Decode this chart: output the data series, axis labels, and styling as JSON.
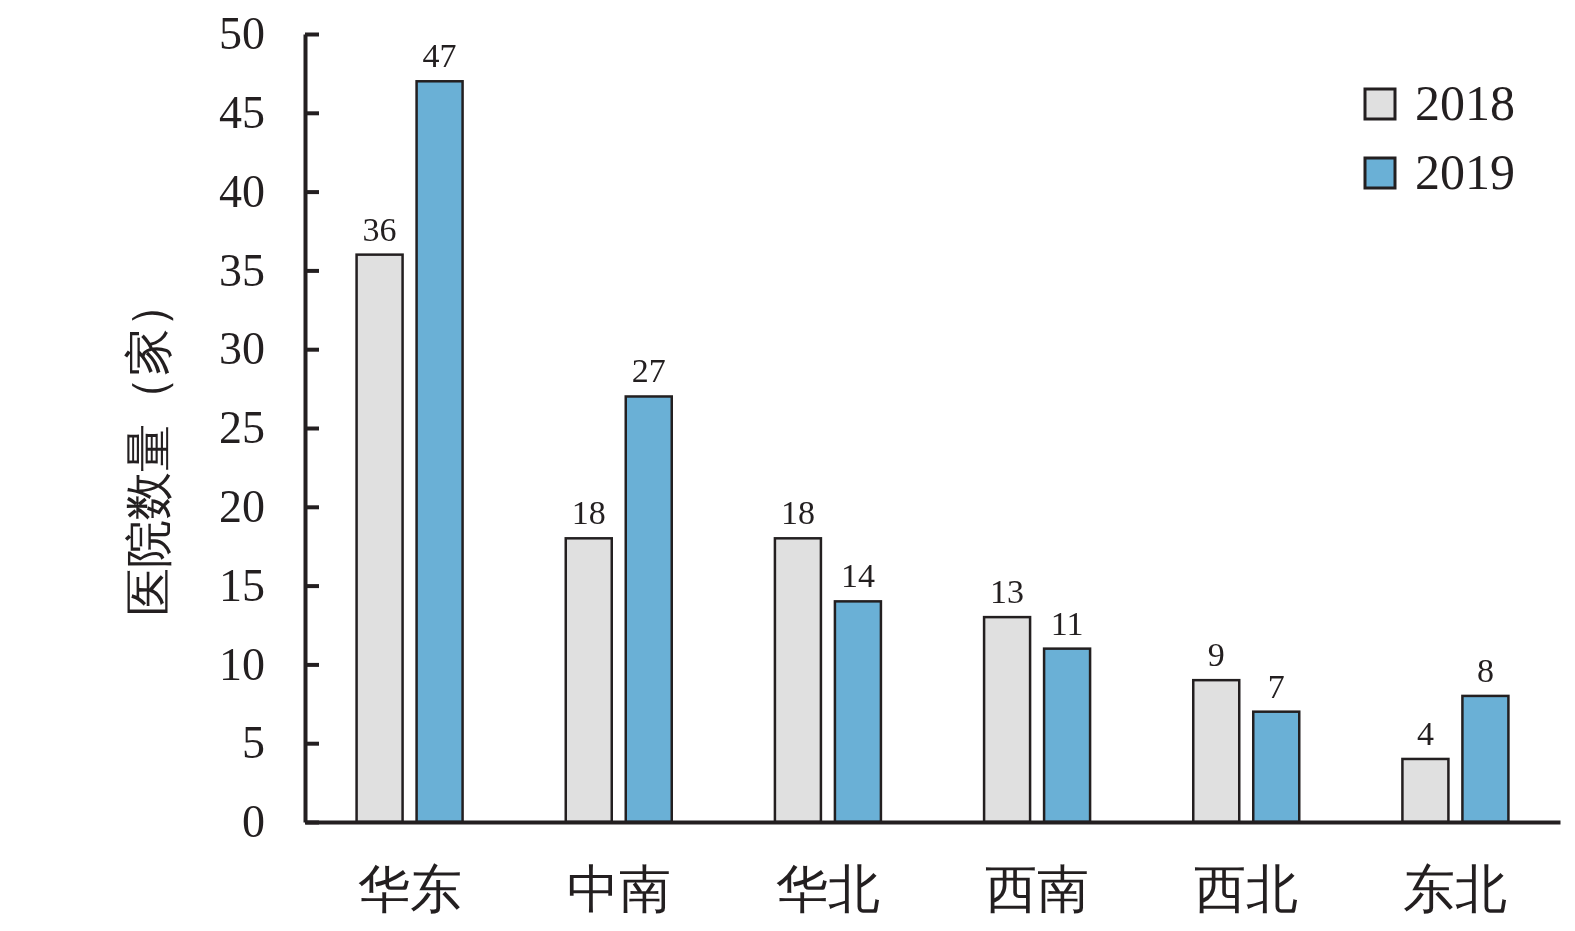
{
  "chart_data": {
    "type": "bar",
    "ylabel": "医院数量（家）",
    "categories": [
      "华东",
      "中南",
      "华北",
      "西南",
      "西北",
      "东北"
    ],
    "series": [
      {
        "name": "2018",
        "color": "#e0e0e0",
        "values": [
          36,
          18,
          18,
          13,
          9,
          4
        ]
      },
      {
        "name": "2019",
        "color": "#6ab0d6",
        "values": [
          47,
          27,
          14,
          11,
          7,
          8
        ]
      }
    ],
    "ylim": [
      0,
      50
    ],
    "yticks": [
      0,
      5,
      10,
      15,
      20,
      25,
      30,
      35,
      40,
      45,
      50
    ],
    "data_labels": true,
    "legend": "top right"
  }
}
